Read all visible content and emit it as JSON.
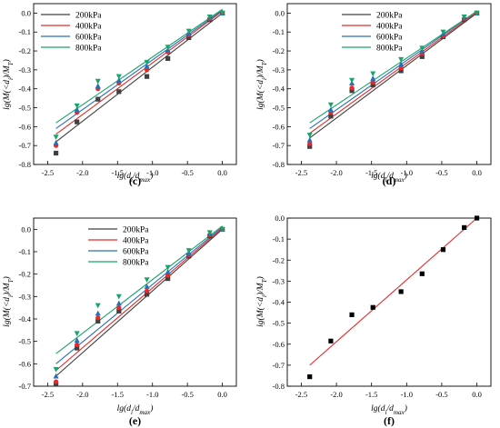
{
  "chart_data": [
    {
      "type": "scatter",
      "panel_label": "(c)",
      "xlabel": "lg(d_i/d_max)",
      "ylabel": "lg(M(<d_i)/M_T)",
      "xlim": [
        -2.7,
        0.2
      ],
      "ylim": [
        -0.8,
        0.05
      ],
      "xticks": [
        "-2.5",
        "-2.0",
        "-1.5",
        "-1.0",
        "-0.5",
        "0.0"
      ],
      "yticks": [
        "-0.8",
        "-0.7",
        "-0.6",
        "-0.5",
        "-0.4",
        "-0.3",
        "-0.2",
        "-0.1",
        "0.0"
      ],
      "legend_position": "top-left",
      "series": [
        {
          "name": "200kPa",
          "color": "#404040",
          "marker": "square",
          "x": [
            -2.38,
            -2.08,
            -1.78,
            -1.48,
            -1.08,
            -0.78,
            -0.48,
            -0.18,
            0.0
          ],
          "y": [
            -0.74,
            -0.575,
            -0.455,
            -0.415,
            -0.335,
            -0.24,
            -0.13,
            -0.035,
            0.0
          ],
          "fit": [
            [
              -2.38,
              -0.68
            ],
            [
              0.0,
              0.0
            ]
          ]
        },
        {
          "name": "400kPa",
          "color": "#e8292a",
          "marker": "circle",
          "x": [
            -2.38,
            -2.08,
            -1.78,
            -1.48,
            -1.08,
            -0.78,
            -0.48,
            -0.18,
            0.0
          ],
          "y": [
            -0.7,
            -0.525,
            -0.4,
            -0.37,
            -0.3,
            -0.205,
            -0.115,
            -0.03,
            0.0
          ],
          "fit": [
            [
              -2.38,
              -0.64
            ],
            [
              0.0,
              0.01
            ]
          ]
        },
        {
          "name": "600kPa",
          "color": "#2a6fb5",
          "marker": "triangle-up",
          "x": [
            -2.38,
            -2.08,
            -1.78,
            -1.48,
            -1.08,
            -0.78,
            -0.48,
            -0.18,
            0.0
          ],
          "y": [
            -0.685,
            -0.51,
            -0.385,
            -0.355,
            -0.28,
            -0.195,
            -0.105,
            -0.025,
            0.0
          ],
          "fit": [
            [
              -2.38,
              -0.61
            ],
            [
              0.0,
              0.015
            ]
          ]
        },
        {
          "name": "800kPa",
          "color": "#1aa36b",
          "marker": "triangle-down",
          "x": [
            -2.38,
            -2.08,
            -1.78,
            -1.48,
            -1.08,
            -0.78,
            -0.48,
            -0.18,
            0.0
          ],
          "y": [
            -0.655,
            -0.49,
            -0.36,
            -0.335,
            -0.26,
            -0.18,
            -0.095,
            -0.02,
            0.0
          ],
          "fit": [
            [
              -2.38,
              -0.58
            ],
            [
              0.0,
              0.02
            ]
          ]
        }
      ]
    },
    {
      "type": "scatter",
      "panel_label": "(d)",
      "xlabel": "lg(d_i/d_max)",
      "ylabel": "lg(M(<d_i)/M_T)",
      "xlim": [
        -2.7,
        0.2
      ],
      "ylim": [
        -0.8,
        0.05
      ],
      "xticks": [
        "-2.5",
        "-2.0",
        "-1.5",
        "-1.0",
        "-0.5",
        "0.0"
      ],
      "yticks": [
        "-0.8",
        "-0.7",
        "-0.6",
        "-0.5",
        "-0.4",
        "-0.3",
        "-0.2",
        "-0.1",
        "0.0"
      ],
      "legend_position": "top-right",
      "series": [
        {
          "name": "200kPa",
          "color": "#404040",
          "marker": "square",
          "x": [
            -2.38,
            -2.08,
            -1.78,
            -1.48,
            -1.08,
            -0.78,
            -0.48,
            -0.18,
            0.0
          ],
          "y": [
            -0.705,
            -0.545,
            -0.41,
            -0.38,
            -0.305,
            -0.23,
            -0.125,
            -0.035,
            0.0
          ],
          "fit": [
            [
              -2.38,
              -0.66
            ],
            [
              0.0,
              0.0
            ]
          ]
        },
        {
          "name": "400kPa",
          "color": "#e8292a",
          "marker": "circle",
          "x": [
            -2.38,
            -2.08,
            -1.78,
            -1.48,
            -1.08,
            -0.78,
            -0.48,
            -0.18,
            0.0
          ],
          "y": [
            -0.69,
            -0.525,
            -0.395,
            -0.365,
            -0.29,
            -0.215,
            -0.12,
            -0.03,
            0.0
          ],
          "fit": [
            [
              -2.38,
              -0.635
            ],
            [
              0.0,
              0.005
            ]
          ]
        },
        {
          "name": "600kPa",
          "color": "#2a6fb5",
          "marker": "triangle-up",
          "x": [
            -2.38,
            -2.08,
            -1.78,
            -1.48,
            -1.08,
            -0.78,
            -0.48,
            -0.18,
            0.0
          ],
          "y": [
            -0.67,
            -0.51,
            -0.37,
            -0.345,
            -0.27,
            -0.2,
            -0.11,
            -0.025,
            0.0
          ],
          "fit": [
            [
              -2.38,
              -0.61
            ],
            [
              0.0,
              0.01
            ]
          ]
        },
        {
          "name": "800kPa",
          "color": "#1aa36b",
          "marker": "triangle-down",
          "x": [
            -2.38,
            -2.08,
            -1.78,
            -1.48,
            -1.08,
            -0.78,
            -0.48,
            -0.18,
            0.0
          ],
          "y": [
            -0.645,
            -0.485,
            -0.355,
            -0.32,
            -0.245,
            -0.185,
            -0.1,
            -0.02,
            0.0
          ],
          "fit": [
            [
              -2.38,
              -0.58
            ],
            [
              0.0,
              0.01
            ]
          ]
        }
      ]
    },
    {
      "type": "scatter",
      "panel_label": "(e)",
      "xlabel": "lg(d_i/d_max)",
      "ylabel": "lg(M(<d_i)/M_T)",
      "xlim": [
        -2.7,
        0.2
      ],
      "ylim": [
        -0.7,
        0.05
      ],
      "xticks": [
        "-2.5",
        "-2.0",
        "-1.5",
        "-1.0",
        "-0.5",
        "0.0"
      ],
      "yticks": [
        "-0.7",
        "-0.6",
        "-0.5",
        "-0.4",
        "-0.3",
        "-0.2",
        "-0.1",
        "0.0"
      ],
      "legend_position": "top-right",
      "series": [
        {
          "name": "200kPa",
          "color": "#404040",
          "marker": "square",
          "x": [
            -2.38,
            -2.08,
            -1.78,
            -1.48,
            -1.08,
            -0.78,
            -0.48,
            -0.18,
            0.0
          ],
          "y": [
            -0.69,
            -0.53,
            -0.41,
            -0.365,
            -0.29,
            -0.22,
            -0.12,
            -0.03,
            0.0
          ],
          "fit": [
            [
              -2.38,
              -0.655
            ],
            [
              0.0,
              0.0
            ]
          ]
        },
        {
          "name": "400kPa",
          "color": "#e8292a",
          "marker": "circle",
          "x": [
            -2.38,
            -2.08,
            -1.78,
            -1.48,
            -1.08,
            -0.78,
            -0.48,
            -0.18,
            0.0
          ],
          "y": [
            -0.68,
            -0.515,
            -0.395,
            -0.35,
            -0.275,
            -0.205,
            -0.115,
            -0.025,
            0.0
          ],
          "fit": [
            [
              -2.38,
              -0.63
            ],
            [
              0.0,
              0.005
            ]
          ]
        },
        {
          "name": "600kPa",
          "color": "#2a6fb5",
          "marker": "triangle-up",
          "x": [
            -2.38,
            -2.08,
            -1.78,
            -1.48,
            -1.08,
            -0.78,
            -0.48,
            -0.18,
            0.0
          ],
          "y": [
            -0.655,
            -0.495,
            -0.375,
            -0.33,
            -0.255,
            -0.19,
            -0.105,
            -0.02,
            0.0
          ],
          "fit": [
            [
              -2.38,
              -0.6
            ],
            [
              0.0,
              0.01
            ]
          ]
        },
        {
          "name": "800kPa",
          "color": "#1aa36b",
          "marker": "triangle-down",
          "x": [
            -2.38,
            -2.08,
            -1.78,
            -1.48,
            -1.08,
            -0.78,
            -0.48,
            -0.18,
            0.0
          ],
          "y": [
            -0.625,
            -0.465,
            -0.34,
            -0.3,
            -0.225,
            -0.17,
            -0.095,
            -0.015,
            0.0
          ],
          "fit": [
            [
              -2.38,
              -0.555
            ],
            [
              0.0,
              0.015
            ]
          ]
        }
      ]
    },
    {
      "type": "scatter",
      "panel_label": "(f)",
      "xlabel": "lg(d_i/d_max)",
      "ylabel": "lg(M(<d_i)/M_T)",
      "xlim": [
        -2.7,
        0.2
      ],
      "ylim": [
        -0.8,
        0.0
      ],
      "xticks": [
        "-2.5",
        "-2.0",
        "-1.5",
        "-1.0",
        "-0.5",
        "0.0"
      ],
      "yticks": [
        "-0.8",
        "-0.7",
        "-0.6",
        "-0.5",
        "-0.4",
        "-0.3",
        "-0.2",
        "-0.1",
        "0.0"
      ],
      "legend_position": "none",
      "series": [
        {
          "name": "",
          "color": "#000000",
          "marker": "square",
          "fit_color": "#e8292a",
          "x": [
            -2.38,
            -2.08,
            -1.78,
            -1.48,
            -1.08,
            -0.78,
            -0.48,
            -0.18,
            0.0
          ],
          "y": [
            -0.755,
            -0.585,
            -0.46,
            -0.425,
            -0.35,
            -0.265,
            -0.15,
            -0.045,
            0.0
          ],
          "fit": [
            [
              -2.38,
              -0.7
            ],
            [
              0.0,
              0.0
            ]
          ]
        }
      ]
    }
  ]
}
